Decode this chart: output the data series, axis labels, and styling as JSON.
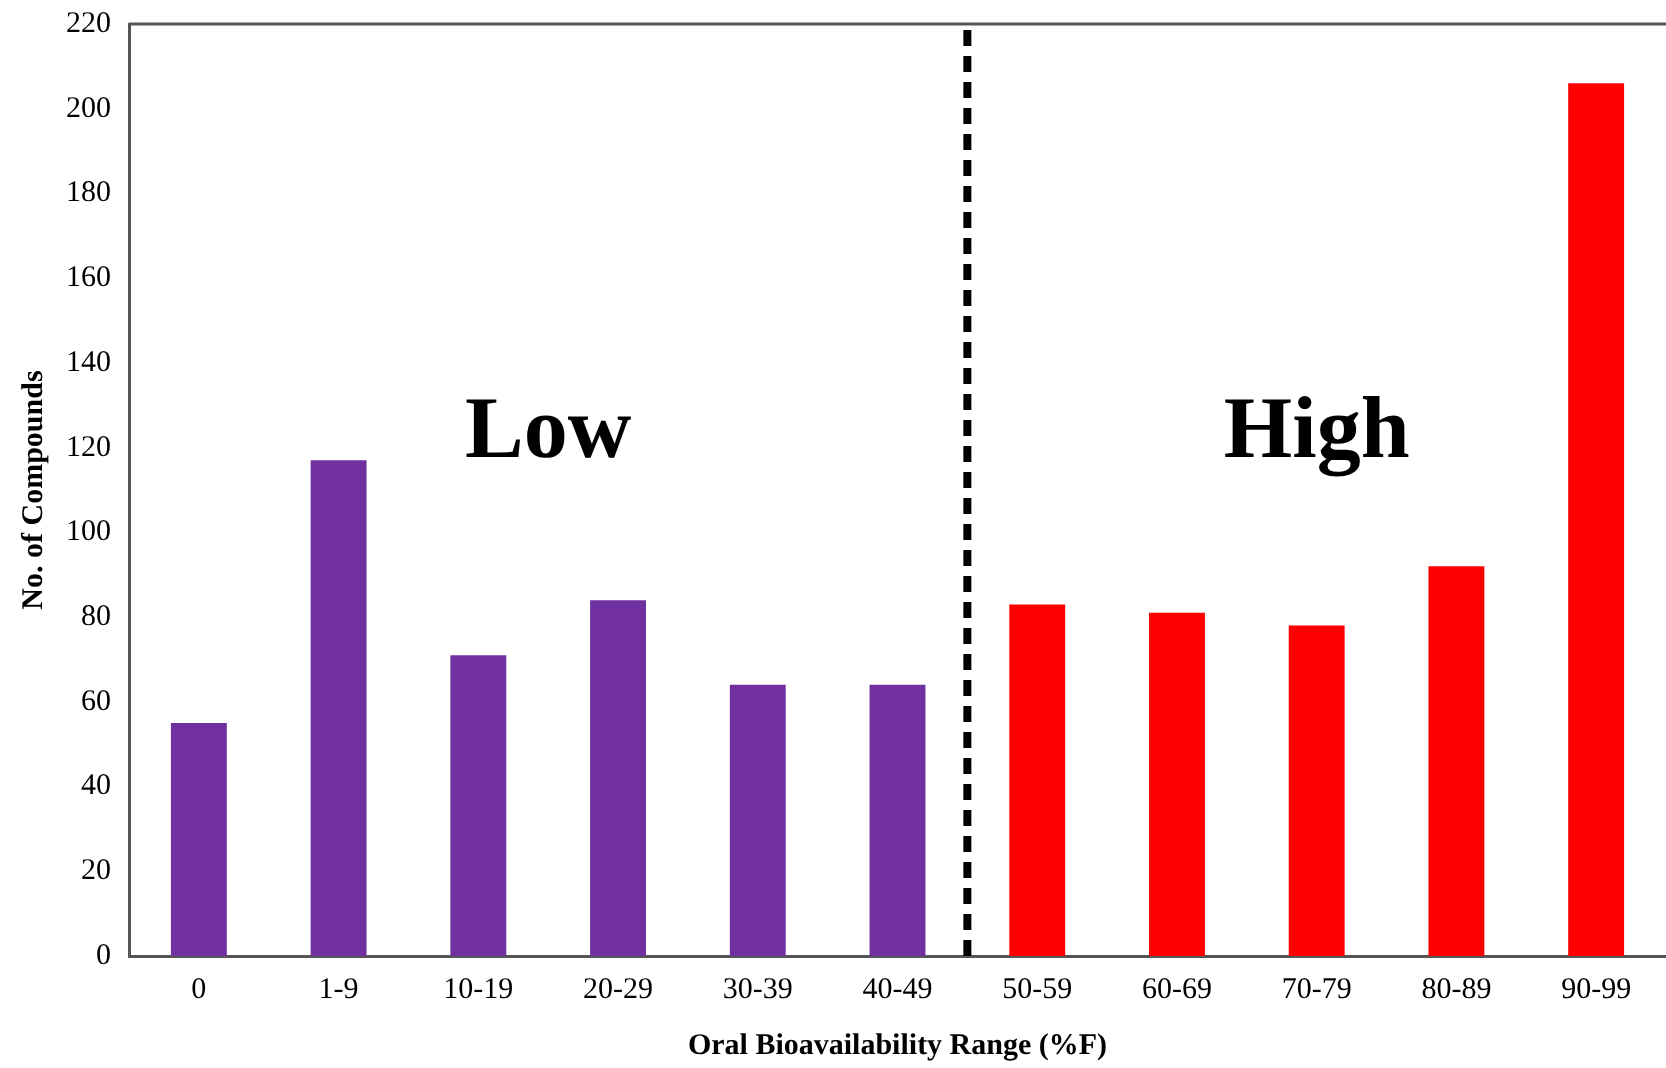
{
  "chart_data": {
    "type": "bar",
    "xlabel": "Oral Bioavailability Range (%F)",
    "ylabel": "No. of Compounds",
    "categories": [
      "0",
      "1-9",
      "10-19",
      "20-29",
      "30-39",
      "40-49",
      "50-59",
      "60-69",
      "70-79",
      "80-89",
      "90-99"
    ],
    "values": [
      55,
      117,
      71,
      84,
      64,
      64,
      83,
      81,
      78,
      92,
      206
    ],
    "colors": [
      "#7030a0",
      "#7030a0",
      "#7030a0",
      "#7030a0",
      "#7030a0",
      "#7030a0",
      "#ff0000",
      "#ff0000",
      "#ff0000",
      "#ff0000",
      "#ff0000"
    ],
    "ylim": [
      0,
      220
    ],
    "yticks": [
      0,
      20,
      40,
      60,
      80,
      100,
      120,
      140,
      160,
      180,
      200,
      220
    ],
    "grid": false,
    "legend": false,
    "annotations": [
      "Low",
      "High"
    ]
  }
}
